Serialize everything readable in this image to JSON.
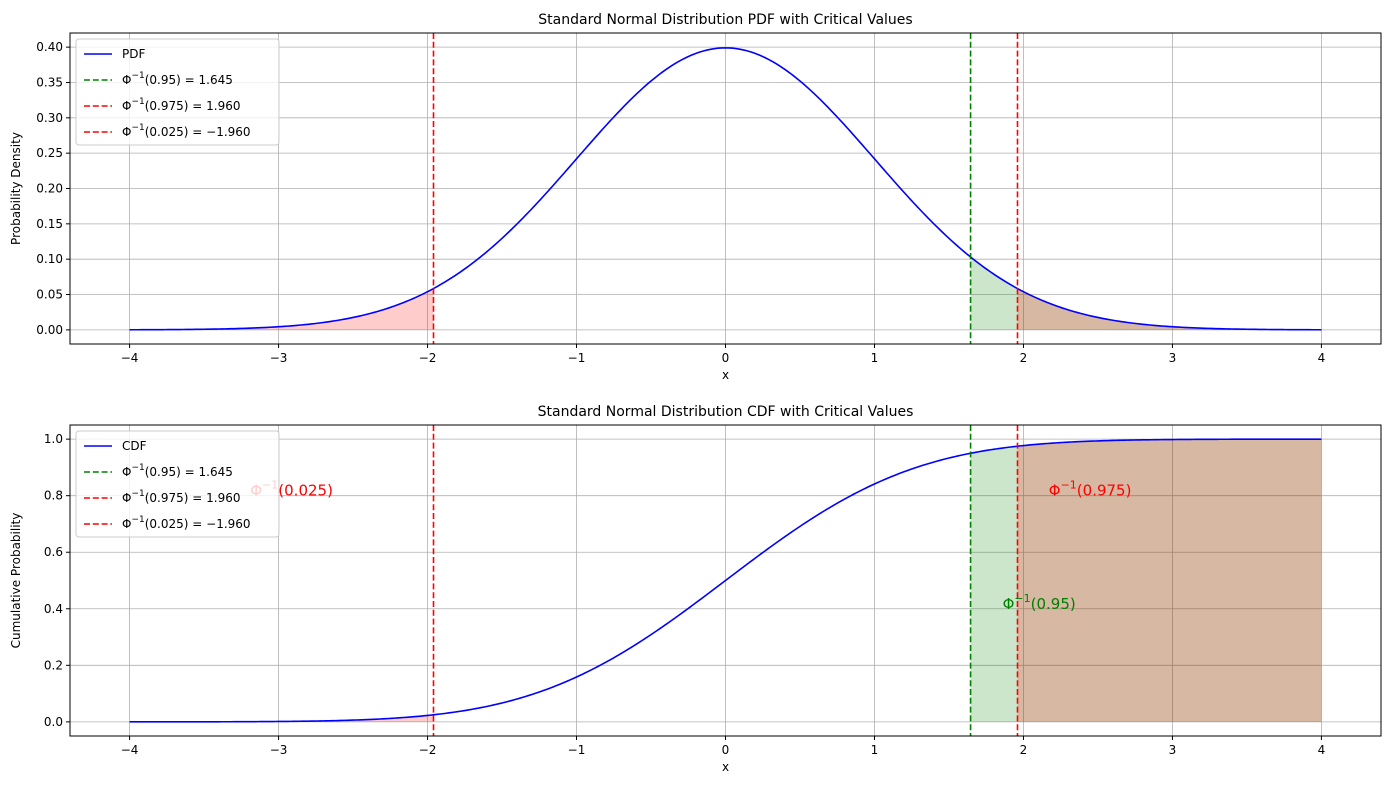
{
  "chart_data": [
    {
      "type": "line",
      "title": "Standard Normal Distribution PDF with Critical Values",
      "xlabel": "x",
      "ylabel": "Probability Density",
      "xlim": [
        -4.4,
        4.4
      ],
      "ylim": [
        -0.02,
        0.42
      ],
      "xticks": [
        -4,
        -3,
        -2,
        -1,
        0,
        1,
        2,
        3,
        4
      ],
      "xtick_labels": [
        "−4",
        "−3",
        "−2",
        "−1",
        "0",
        "1",
        "2",
        "3",
        "4"
      ],
      "yticks": [
        0.0,
        0.05,
        0.1,
        0.15,
        0.2,
        0.25,
        0.3,
        0.35,
        0.4
      ],
      "ytick_labels": [
        "0.00",
        "0.05",
        "0.10",
        "0.15",
        "0.20",
        "0.25",
        "0.30",
        "0.35",
        "0.40"
      ],
      "grid": true,
      "legend_position": "top-left",
      "func": "pdf",
      "x_range": [
        -4,
        4
      ],
      "series": [
        {
          "name": "PDF",
          "color": "#0000ff",
          "style": "solid"
        }
      ],
      "vlines": [
        {
          "x": 1.645,
          "color": "#008000",
          "label_main": "Φ",
          "label_sup": "−1",
          "label_rest": "(0.95) = 1.645"
        },
        {
          "x": 1.96,
          "color": "#ff0000",
          "label_main": "Φ",
          "label_sup": "−1",
          "label_rest": "(0.975) = 1.960"
        },
        {
          "x": -1.96,
          "color": "#ff0000",
          "label_main": "Φ",
          "label_sup": "−1",
          "label_rest": "(0.025) = −1.960"
        }
      ],
      "fills": [
        {
          "from": -4,
          "to": -1.96,
          "color": "#ff0000",
          "alpha": 0.2
        },
        {
          "from": 1.645,
          "to": 4,
          "color": "#008000",
          "alpha": 0.2
        },
        {
          "from": 1.96,
          "to": 4,
          "color": "#ff0000",
          "alpha": 0.2
        }
      ],
      "annotations": []
    },
    {
      "type": "line",
      "title": "Standard Normal Distribution CDF with Critical Values",
      "xlabel": "x",
      "ylabel": "Cumulative Probability",
      "xlim": [
        -4.4,
        4.4
      ],
      "ylim": [
        -0.05,
        1.05
      ],
      "xticks": [
        -4,
        -3,
        -2,
        -1,
        0,
        1,
        2,
        3,
        4
      ],
      "xtick_labels": [
        "−4",
        "−3",
        "−2",
        "−1",
        "0",
        "1",
        "2",
        "3",
        "4"
      ],
      "yticks": [
        0.0,
        0.2,
        0.4,
        0.6,
        0.8,
        1.0
      ],
      "ytick_labels": [
        "0.0",
        "0.2",
        "0.4",
        "0.6",
        "0.8",
        "1.0"
      ],
      "grid": true,
      "legend_position": "top-left",
      "func": "cdf",
      "x_range": [
        -4,
        4
      ],
      "series": [
        {
          "name": "CDF",
          "color": "#0000ff",
          "style": "solid"
        }
      ],
      "vlines": [
        {
          "x": 1.645,
          "color": "#008000",
          "label_main": "Φ",
          "label_sup": "−1",
          "label_rest": "(0.95) = 1.645"
        },
        {
          "x": 1.96,
          "color": "#ff0000",
          "label_main": "Φ",
          "label_sup": "−1",
          "label_rest": "(0.975) = 1.960"
        },
        {
          "x": -1.96,
          "color": "#ff0000",
          "label_main": "Φ",
          "label_sup": "−1",
          "label_rest": "(0.025) = −1.960"
        }
      ],
      "fills": [
        {
          "from": -4,
          "to": -1.96,
          "color": "#ff0000",
          "alpha": 0.2
        },
        {
          "from": 1.645,
          "to": 4,
          "color": "#008000",
          "alpha": 0.2
        },
        {
          "from": 1.96,
          "to": 4,
          "color": "#ff0000",
          "alpha": 0.2
        }
      ],
      "annotations": [
        {
          "x": -3.19,
          "y": 0.8,
          "color": "#ff0000",
          "main": "Φ",
          "sup": "−1",
          "rest": "(0.025)"
        },
        {
          "x": 2.17,
          "y": 0.8,
          "color": "#ff0000",
          "main": "Φ",
          "sup": "−1",
          "rest": "(0.975)"
        },
        {
          "x": 1.86,
          "y": 0.4,
          "color": "#008000",
          "main": "Φ",
          "sup": "−1",
          "rest": "(0.95)"
        }
      ]
    }
  ]
}
